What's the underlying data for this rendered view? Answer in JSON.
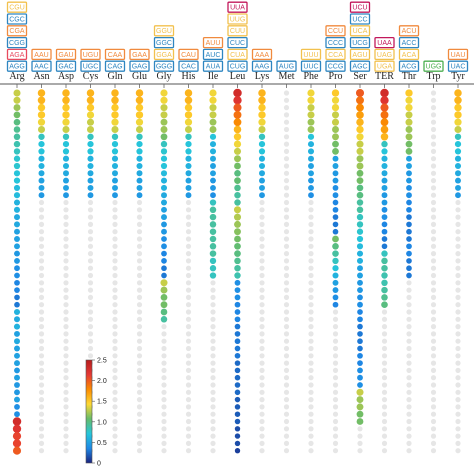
{
  "chart_data": {
    "type": "scatter",
    "title": "",
    "amino_acids": [
      "Arg",
      "Asn",
      "Asp",
      "Cys",
      "Gln",
      "Glu",
      "Gly",
      "His",
      "Ile",
      "Leu",
      "Lys",
      "Met",
      "Phe",
      "Pro",
      "Ser",
      "TER",
      "Thr",
      "Trp",
      "Tyr"
    ],
    "codons": [
      [
        "CGU",
        "CGC",
        "CGA",
        "CGG",
        "AGA",
        "AGG"
      ],
      [
        "AAU",
        "AAC"
      ],
      [
        "GAU",
        "GAC"
      ],
      [
        "UGU",
        "UGC"
      ],
      [
        "CAA",
        "CAG"
      ],
      [
        "GAA",
        "GAG"
      ],
      [
        "GGU",
        "GGC",
        "GGA",
        "GGG"
      ],
      [
        "CAU",
        "CAC"
      ],
      [
        "AUU",
        "AUC",
        "AUA"
      ],
      [
        "UUA",
        "UUG",
        "CUU",
        "CUC",
        "CUA",
        "CUG"
      ],
      [
        "AAA",
        "AAG"
      ],
      [
        "AUG"
      ],
      [
        "UUU",
        "UUC"
      ],
      [
        "CCU",
        "CCC",
        "CCA",
        "CCG"
      ],
      [
        "UCU",
        "UCC",
        "UCA",
        "UCG",
        "AGU",
        "AGC"
      ],
      [
        "UAA",
        "UAG",
        "UGA"
      ],
      [
        "ACU",
        "ACC",
        "ACA",
        "ACG"
      ],
      [
        "UGG"
      ],
      [
        "UAU",
        "UAC"
      ]
    ],
    "codon_colors": [
      [
        "#f2c14e",
        "#2e86c1",
        "#f08a3e",
        "#2e86c1",
        "#e84a5f",
        "#2e86c1"
      ],
      [
        "#f08a3e",
        "#2e86c1"
      ],
      [
        "#f08a3e",
        "#2e86c1"
      ],
      [
        "#f08a3e",
        "#2e86c1"
      ],
      [
        "#f08a3e",
        "#2e86c1"
      ],
      [
        "#f08a3e",
        "#2e86c1"
      ],
      [
        "#f2c14e",
        "#2e86c1",
        "#f2c14e",
        "#2e86c1"
      ],
      [
        "#f08a3e",
        "#2e86c1"
      ],
      [
        "#f08a3e",
        "#2e86c1",
        "#2e86c1"
      ],
      [
        "#c2185b",
        "#f2c14e",
        "#f2c14e",
        "#2e86c1",
        "#f2c14e",
        "#2e86c1"
      ],
      [
        "#f08a3e",
        "#2e86c1"
      ],
      [
        "#2e86c1"
      ],
      [
        "#f2c14e",
        "#2e86c1"
      ],
      [
        "#f08a3e",
        "#2e86c1",
        "#f2c14e",
        "#2e86c1"
      ],
      [
        "#c2185b",
        "#2e86c1",
        "#f2c14e",
        "#2e86c1",
        "#f2c14e",
        "#2e86c1"
      ],
      [
        "#c2185b",
        "#f2c14e",
        "#f2c14e"
      ],
      [
        "#f08a3e",
        "#2e86c1",
        "#f2c14e",
        "#2e86c1"
      ],
      [
        "#4caf50"
      ],
      [
        "#f08a3e",
        "#2e86c1"
      ]
    ],
    "dot_rows": 50,
    "dot_values": [
      [
        1.3,
        1.3,
        1.2,
        1.1,
        1.0,
        0.95,
        0.9,
        0.85,
        0.8,
        0.75,
        0.75,
        0.7,
        0.7,
        0.65,
        0.65,
        0.6,
        0.6,
        0.55,
        0.55,
        0.5,
        0.5,
        0.5,
        0.45,
        0.45,
        0.4,
        0.4,
        0.35,
        0.35,
        0.3,
        0.3,
        0.6,
        0.55,
        0.6,
        0.5,
        0.55,
        0.5,
        0.5,
        0.5,
        0.45,
        0.5,
        0.45,
        0.45,
        0.5,
        0.4,
        0.4,
        2.3,
        2.2,
        2.1,
        2.1,
        2.0,
        2.0,
        1.9,
        1.8,
        1.7,
        1.5,
        1.3
      ],
      [
        1.6,
        1.6,
        1.5,
        1.5,
        1.4,
        1.3,
        0.8,
        0.7,
        0.7,
        0.6,
        0.6,
        0.55,
        0.5,
        0.5,
        0.45
      ],
      [
        1.6,
        1.6,
        1.5,
        1.5,
        1.4,
        1.3,
        0.8,
        0.7,
        0.7,
        0.6,
        0.6,
        0.55,
        0.5,
        0.5,
        0.45
      ],
      [
        1.6,
        1.6,
        1.5,
        1.4,
        1.3,
        1.3,
        0.8,
        0.7,
        0.7,
        0.6,
        0.6,
        0.55,
        0.5,
        0.5,
        0.45
      ],
      [
        1.6,
        1.6,
        1.5,
        1.5,
        1.4,
        1.3,
        0.8,
        0.7,
        0.7,
        0.6,
        0.6,
        0.55,
        0.5,
        0.5,
        0.45
      ],
      [
        1.6,
        1.6,
        1.5,
        1.5,
        1.4,
        1.3,
        0.8,
        0.7,
        0.7,
        0.6,
        0.6,
        0.55,
        0.5,
        0.5,
        0.45
      ],
      [
        1.4,
        1.4,
        1.3,
        1.3,
        1.2,
        1.2,
        1.1,
        0.8,
        0.75,
        0.7,
        0.7,
        0.65,
        0.6,
        0.6,
        0.55,
        0.55,
        0.5,
        0.5,
        0.45,
        0.45,
        0.4,
        0.4,
        0.35,
        0.35,
        0.3,
        0.3,
        1.3,
        1.2,
        1.1,
        1.1,
        1.0,
        0.9
      ],
      [
        1.6,
        1.6,
        1.5,
        1.5,
        1.4,
        1.3,
        0.8,
        0.7,
        0.7,
        0.6,
        0.6,
        0.55,
        0.5,
        0.5,
        0.45
      ],
      [
        1.4,
        1.4,
        1.3,
        1.3,
        1.2,
        1.2,
        0.7,
        0.6,
        0.6,
        0.55,
        0.5,
        0.5,
        0.45,
        0.45,
        0.4,
        0.8,
        0.9,
        0.9,
        0.9,
        0.9,
        0.9,
        0.9,
        0.9,
        0.8,
        0.8,
        0.8
      ],
      [
        2.3,
        2.2,
        2.0,
        1.9,
        1.8,
        1.6,
        1.5,
        1.4,
        1.3,
        1.2,
        1.1,
        1.0,
        1.05,
        0.95,
        0.9,
        0.9,
        1.3,
        1.25,
        1.2,
        1.15,
        1.1,
        1.05,
        1.0,
        0.95,
        0.9,
        0.85,
        0.4,
        0.4,
        0.4,
        0.35,
        0.35,
        0.35,
        0.3,
        0.3,
        0.3,
        0.3,
        0.3,
        0.25,
        0.25,
        0.25,
        0.25,
        0.25,
        0.2,
        0.2,
        0.2,
        0.2,
        0.15,
        0.15,
        0.15,
        0.1
      ],
      [
        1.6,
        1.6,
        1.5,
        1.5,
        1.4,
        1.3,
        0.8,
        0.7,
        0.7,
        0.6,
        0.6,
        0.55,
        0.5,
        0.5,
        0.45
      ],
      [],
      [
        1.4,
        1.4,
        1.3,
        1.3,
        1.2,
        1.2,
        0.7,
        0.6,
        0.6,
        0.55,
        0.5,
        0.5,
        0.45,
        0.45,
        0.4
      ],
      [
        1.5,
        1.4,
        1.4,
        1.3,
        1.3,
        1.2,
        1.2,
        1.1,
        1.1,
        0.5,
        0.5,
        0.45,
        0.45,
        0.4,
        0.4,
        0.35,
        0.35,
        0.3,
        0.3,
        0.3,
        1.1,
        1.0,
        0.9,
        0.8,
        0.7,
        0.6,
        0.5,
        0.45,
        0.4,
        0.35
      ],
      [
        2.0,
        1.9,
        1.8,
        1.7,
        1.6,
        1.5,
        1.4,
        1.3,
        1.3,
        1.2,
        1.2,
        1.1,
        1.1,
        1.0,
        1.0,
        0.9,
        0.9,
        0.8,
        0.8,
        0.75,
        0.7,
        0.65,
        0.6,
        0.6,
        0.5,
        0.5,
        0.45,
        0.45,
        0.4,
        0.4,
        0.35,
        0.35,
        0.3,
        0.3,
        0.3,
        0.3,
        0.35,
        0.35,
        0.4,
        0.4,
        0.4,
        1.3,
        1.2,
        1.2,
        1.1,
        1.1
      ],
      [
        2.3,
        2.2,
        2.0,
        1.9,
        1.8,
        1.7,
        1.6,
        0.8,
        0.7,
        0.6,
        0.6,
        0.55,
        0.5,
        0.5,
        0.45,
        0.45,
        0.4,
        0.4,
        0.35,
        0.35,
        0.3,
        0.3,
        0.8,
        0.9,
        0.9,
        0.85,
        0.85,
        0.9,
        0.95,
        1.0
      ],
      [
        1.5,
        1.4,
        1.4,
        1.3,
        1.3,
        1.2,
        1.2,
        1.1,
        1.1,
        0.5,
        0.5,
        0.45,
        0.45,
        0.4,
        0.4,
        0.35,
        0.35,
        0.3,
        0.3,
        0.3,
        0.3,
        0.35,
        0.35,
        0.3,
        0.3,
        0.3
      ],
      [],
      [
        1.6,
        1.6,
        1.5,
        1.5,
        1.4,
        1.3,
        0.8,
        0.7,
        0.7,
        0.6,
        0.6,
        0.55,
        0.5,
        0.5,
        0.45
      ]
    ],
    "colorbar": {
      "min": 0,
      "max": 2.5,
      "ticks": [
        "0",
        "0.5",
        "1.0",
        "1.5",
        "2.0",
        "2.5"
      ],
      "stops": [
        "#1a237e",
        "#1e88e5",
        "#26c6da",
        "#66bb6a",
        "#fdd835",
        "#fb8c00",
        "#e53935",
        "#b71c1c"
      ]
    },
    "empty_dot_color": "#e6e6e6"
  }
}
